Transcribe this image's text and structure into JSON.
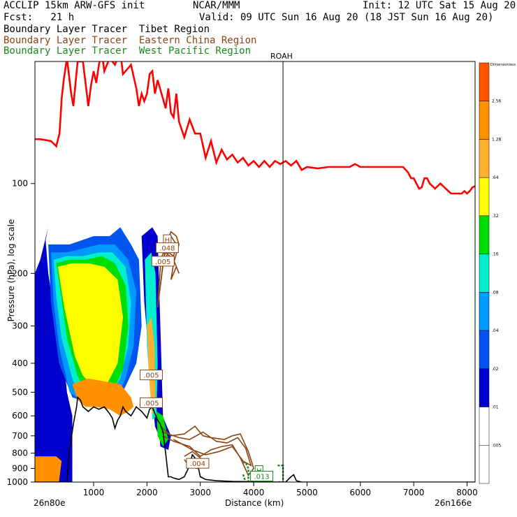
{
  "header": {
    "title_left": "ACCLIP 15km ARW-GFS init",
    "center": "NCAR/MMM",
    "init": "Init: 12 UTC Sat 15 Aug 20",
    "fcst": "Fcst:   21 h",
    "valid": "Valid: 09 UTC Sun 16 Aug 20 (18 JST Sun 16 Aug 20)"
  },
  "legend": [
    {
      "label": "Boundary Layer Tracer  Tibet Region",
      "color": "#000000"
    },
    {
      "label": "Boundary Layer Tracer  Eastern China Region",
      "color": "#8B4513"
    },
    {
      "label": "Boundary Layer Tracer  West Pacific Region",
      "color": "#1A8A1A"
    }
  ],
  "station": "ROAH",
  "colors": {
    "tropopause": "#FF0000",
    "terrain": "#000000",
    "eastern_china": "#8B4513",
    "west_pacific": "#1A8A1A"
  },
  "chart_data": {
    "type": "heatmap",
    "xlabel": "Distance (km)",
    "ylabel": "Pressure (hPa), log scale",
    "x_ticks": [
      "1000",
      "2000",
      "3000",
      "4000",
      "5000",
      "6000",
      "7000",
      "8000"
    ],
    "y_ticks": [
      "100",
      "200",
      "300",
      "400",
      "500",
      "600",
      "700",
      "800",
      "900",
      "1000"
    ],
    "xlim": [
      -100,
      8150
    ],
    "ylim": [
      1000,
      39
    ],
    "y_scale": "log",
    "x_start_label": "26n80e",
    "x_end_label": "26n166e",
    "station_x": 4550,
    "colorbar": {
      "title": "Dimensionless",
      "labels": [
        "2.56",
        "1.28",
        ".64",
        ".32",
        ".16",
        ".08",
        ".04",
        ".02",
        ".01",
        ".005"
      ],
      "colors": [
        "#FF5500",
        "#FF9000",
        "#FFB030",
        "#FFFF00",
        "#00DD00",
        "#00EECC",
        "#0099FF",
        "#0055EE",
        "#0000CC",
        "#FFFFFF",
        "#FFFFFF"
      ]
    },
    "annotations": [
      {
        "text": "H",
        "x": 2380,
        "p": 155
      },
      {
        "text": ".048",
        "x": 2380,
        "p": 165
      },
      {
        "text": ".005",
        "x": 2300,
        "p": 183
      },
      {
        "text": ".005",
        "x": 2080,
        "p": 440
      },
      {
        "text": ".005",
        "x": 2080,
        "p": 545
      },
      {
        "text": ".004",
        "x": 2950,
        "p": 870
      },
      {
        "text": "H",
        "x": 4100,
        "p": 920
      },
      {
        "text": ".013",
        "x": 4150,
        "p": 960
      }
    ],
    "tropopause": {
      "name": "",
      "x": [
        -100,
        0,
        200,
        300,
        360,
        380,
        400,
        440,
        500,
        580,
        620,
        700,
        760,
        800,
        900,
        950,
        1000,
        1050,
        1100,
        1150,
        1200,
        1300,
        1400,
        1500,
        1550,
        1600,
        1700,
        1800,
        1850,
        1900,
        1950,
        2000,
        2050,
        2100,
        2150,
        2200,
        2300,
        2350,
        2400,
        2450,
        2500,
        2550,
        2600,
        2700,
        2800,
        2900,
        3000,
        3100,
        3200,
        3300,
        3400,
        3500,
        3600,
        3700,
        3800,
        3900,
        4000,
        4100,
        4200,
        4300,
        4400,
        4500,
        4600,
        4700,
        4800,
        4900,
        5000,
        5200,
        5400,
        5600,
        5800,
        5900,
        6000,
        6200,
        6400,
        6600,
        6800,
        6900,
        6950,
        7000,
        7050,
        7100,
        7150,
        7200,
        7250,
        7300,
        7400,
        7500,
        7600,
        7700,
        7800,
        7900,
        7950,
        8000,
        8050,
        8100,
        8150
      ],
      "p": [
        71,
        71,
        72,
        75,
        68,
        60,
        52,
        45,
        38,
        50,
        55,
        39,
        39,
        39,
        55,
        47,
        42,
        46,
        40,
        36,
        42,
        38,
        40,
        36,
        43,
        42,
        40,
        48,
        55,
        50,
        53,
        50,
        43,
        42,
        50,
        45,
        52,
        56,
        48,
        58,
        60,
        50,
        62,
        70,
        61,
        68,
        68,
        82,
        72,
        85,
        77,
        83,
        80,
        85,
        82,
        87,
        84,
        88,
        84,
        88,
        84,
        86,
        84,
        87,
        84,
        90,
        88,
        89,
        88,
        88,
        88,
        86,
        88,
        88,
        88,
        88,
        88,
        92,
        96,
        96,
        100,
        104,
        103,
        96,
        96,
        100,
        104,
        100,
        104,
        108,
        108,
        108,
        106,
        108,
        106,
        103,
        102
      ]
    },
    "terrain": {
      "name": "",
      "x": [
        -100,
        0,
        300,
        500,
        550,
        620,
        680,
        700,
        750,
        800,
        900,
        1000,
        1100,
        1200,
        1300,
        1350,
        1400,
        1450,
        1500,
        1550,
        1600,
        1700,
        1800,
        1900,
        2000,
        2050,
        2100,
        2150,
        2200,
        2250,
        2300,
        2350,
        2400,
        2450,
        2500,
        2600,
        2700,
        2800,
        2850,
        2900,
        2950,
        3000,
        3100,
        3300,
        3600,
        4000,
        4500,
        4600,
        4700,
        4750,
        4800,
        4900,
        5000,
        6000,
        7000,
        8150
      ],
      "p": [
        1000,
        1000,
        1000,
        1000,
        780,
        640,
        560,
        520,
        530,
        560,
        580,
        560,
        570,
        560,
        590,
        610,
        660,
        620,
        600,
        560,
        580,
        600,
        560,
        580,
        610,
        570,
        560,
        590,
        620,
        640,
        680,
        800,
        960,
        960,
        970,
        980,
        960,
        880,
        810,
        830,
        870,
        960,
        980,
        990,
        995,
        998,
        1000,
        1000,
        960,
        945,
        990,
        1000,
        1000,
        1000,
        1000,
        1000
      ]
    }
  }
}
